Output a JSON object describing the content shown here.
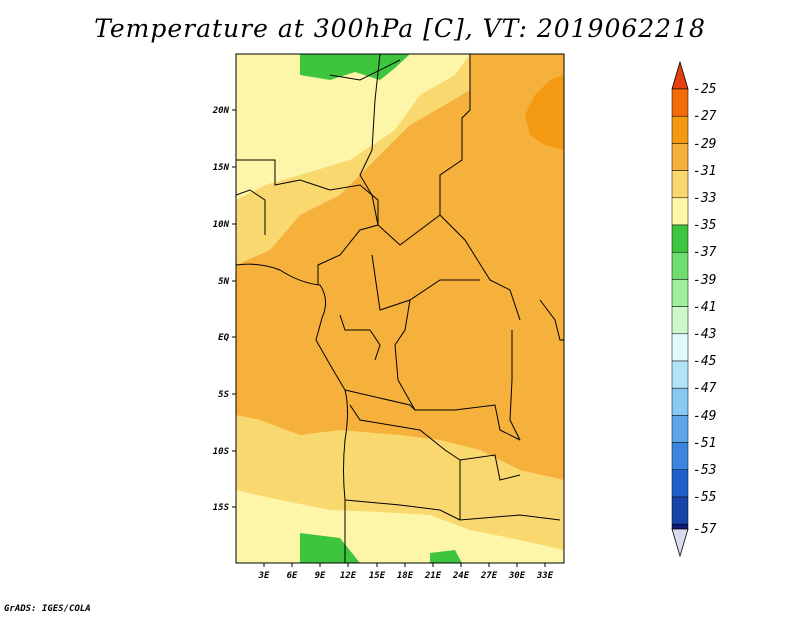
{
  "title": "Temperature at 300hPa [C], VT: 2019062218",
  "credit": "GrADS: IGES/COLA",
  "map": {
    "lon_range": [
      0,
      35
    ],
    "lat_range": [
      -20,
      25
    ],
    "lon_ticks": [
      "3E",
      "6E",
      "9E",
      "12E",
      "15E",
      "18E",
      "21E",
      "24E",
      "27E",
      "30E",
      "33E"
    ],
    "lat_ticks": [
      "20N",
      "15N",
      "10N",
      "5N",
      "EQ",
      "5S",
      "10S",
      "15S"
    ]
  },
  "colorbar": {
    "levels": [
      "-25",
      "-27",
      "-29",
      "-31",
      "-33",
      "-35",
      "-37",
      "-39",
      "-41",
      "-43",
      "-45",
      "-47",
      "-49",
      "-51",
      "-53",
      "-55",
      "-57"
    ],
    "colors": [
      "#e8400c",
      "#f26a0a",
      "#f49a12",
      "#f6b03c",
      "#fad870",
      "#fdf6a8",
      "#3ec53e",
      "#6fdc6f",
      "#9ff09a",
      "#cdf8cc",
      "#e2fafd",
      "#b2e4f8",
      "#88c8f2",
      "#5ea6ea",
      "#3a86e0",
      "#1f60cc",
      "#1744a8",
      "#0c1a78",
      "#d8dcf0"
    ]
  },
  "palette": {
    "c_m27": "#f49a12",
    "c_m29": "#f6b03c",
    "c_m31": "#fad870",
    "c_m33": "#fdf6a8",
    "c_m35": "#3ec53e"
  }
}
